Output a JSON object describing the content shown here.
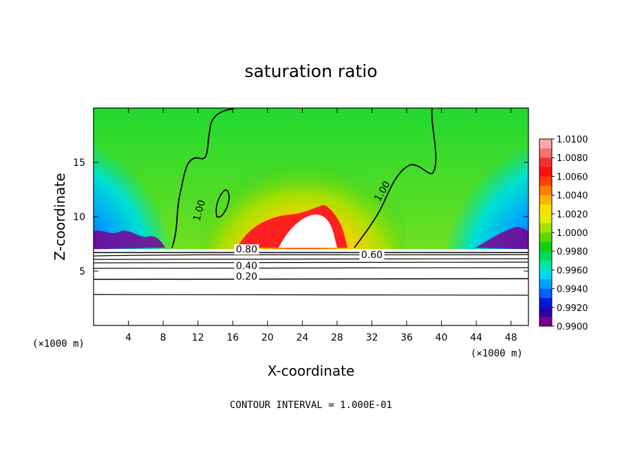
{
  "chart_data": {
    "type": "heatmap",
    "title": "saturation ratio",
    "xlabel": "X-coordinate",
    "ylabel": "Z-coordinate",
    "x_unit_left": "(×1000 m)",
    "x_unit_right": "(×1000 m)",
    "xlim": [
      0,
      50
    ],
    "ylim": [
      0,
      20
    ],
    "x_ticks": [
      4,
      8,
      12,
      16,
      20,
      24,
      28,
      32,
      36,
      40,
      44,
      48
    ],
    "y_ticks": [
      5,
      10,
      15
    ],
    "colorbar": {
      "ticks": [
        "0.9900",
        "0.9920",
        "0.9940",
        "0.9960",
        "0.9980",
        "1.0000",
        "1.0020",
        "1.0040",
        "1.0060",
        "1.0080",
        "1.0100"
      ],
      "colors": [
        "#7a0090",
        "#2a00a8",
        "#0018d8",
        "#0060ff",
        "#00a0ff",
        "#00d8f0",
        "#00e8a8",
        "#00d860",
        "#10d010",
        "#5ed800",
        "#a8e000",
        "#e0f000",
        "#ffe000",
        "#ffb400",
        "#ff8000",
        "#ff4000",
        "#ff1010",
        "#f03030",
        "#f87070",
        "#ffa8a8"
      ]
    },
    "contour_labels": [
      {
        "text": "1.00",
        "x": 12.5,
        "y": 10.5
      },
      {
        "text": "1.00",
        "x": 33.5,
        "y": 12.2
      },
      {
        "text": "0.80",
        "x": 17.6,
        "y": 6.7
      },
      {
        "text": "0.60",
        "x": 32.0,
        "y": 6.2
      },
      {
        "text": "0.40",
        "x": 17.6,
        "y": 5.2
      },
      {
        "text": "0.20",
        "x": 17.6,
        "y": 4.2
      }
    ],
    "annotation": "CONTOUR INTERVAL = 1.000E-01",
    "grid": false
  }
}
